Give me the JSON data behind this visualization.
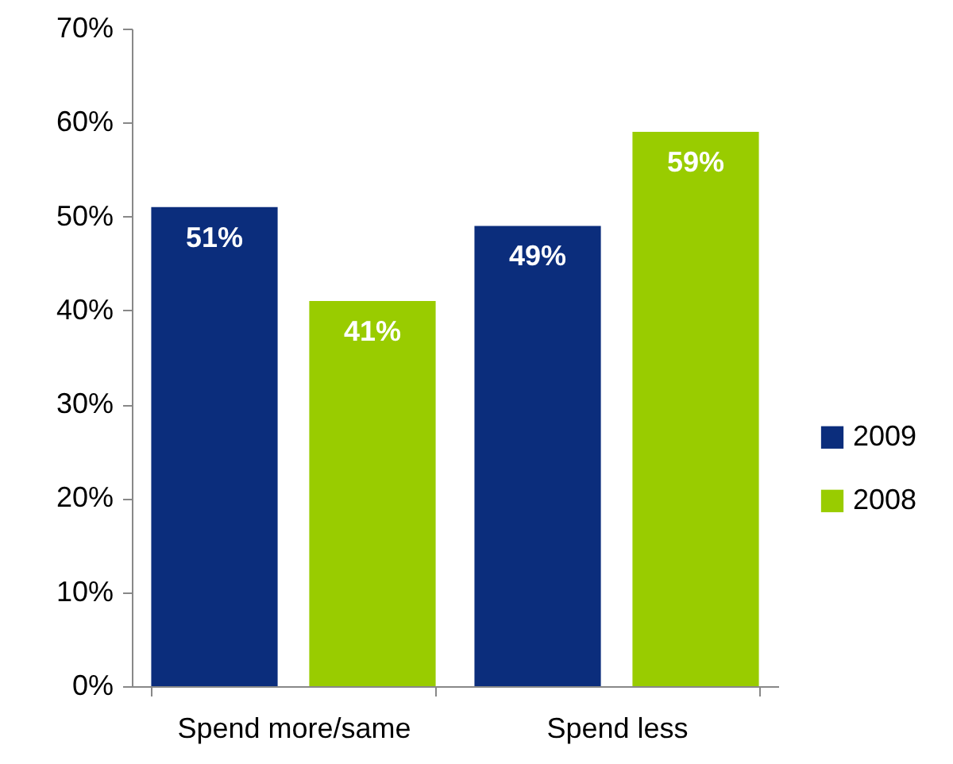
{
  "chart_data": {
    "type": "bar",
    "categories": [
      "Spend more/same",
      "Spend less"
    ],
    "series": [
      {
        "name": "2009",
        "color": "#0b2d7c",
        "values": [
          51,
          49
        ],
        "value_labels": [
          "51%",
          "49%"
        ]
      },
      {
        "name": "2008",
        "color": "#99cc00",
        "values": [
          41,
          59
        ],
        "value_labels": [
          "41%",
          "59%"
        ]
      }
    ],
    "ylim": [
      0,
      70
    ],
    "yticks": [
      {
        "value": 0,
        "label": "0%"
      },
      {
        "value": 10,
        "label": "10%"
      },
      {
        "value": 20,
        "label": "20%"
      },
      {
        "value": 30,
        "label": "30%"
      },
      {
        "value": 40,
        "label": "40%"
      },
      {
        "value": 50,
        "label": "50%"
      },
      {
        "value": 60,
        "label": "60%"
      },
      {
        "value": 70,
        "label": "70%"
      }
    ],
    "grid": false,
    "legend": "right"
  }
}
